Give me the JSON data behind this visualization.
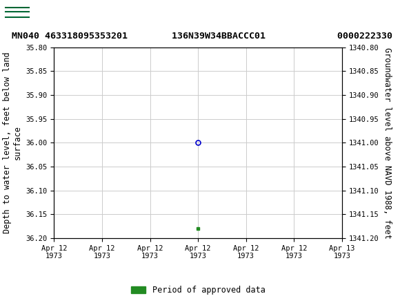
{
  "title_line": "MN040 463318095353201        136N39W34BBACCC01             0000222330",
  "header_bg_color": "#006633",
  "ylabel_left": "Depth to water level, feet below land\nsurface",
  "ylabel_right": "Groundwater level above NAVD 1988, feet",
  "ylim_left": [
    35.8,
    36.2
  ],
  "ylim_right": [
    1340.8,
    1341.2
  ],
  "yticks_left": [
    35.8,
    35.85,
    35.9,
    35.95,
    36.0,
    36.05,
    36.1,
    36.15,
    36.2
  ],
  "yticks_right": [
    1340.8,
    1340.85,
    1340.9,
    1340.95,
    1341.0,
    1341.05,
    1341.1,
    1341.15,
    1341.2
  ],
  "data_point_xh": 12,
  "data_point_y": 36.0,
  "data_point_color": "#0000cc",
  "data_point_marker_size": 5,
  "green_square_xh": 12,
  "green_square_y": 36.18,
  "green_square_color": "#228B22",
  "legend_label": "Period of approved data",
  "grid_color": "#cccccc",
  "background_color": "#ffffff",
  "font_family": "monospace",
  "title_fontsize": 9.5,
  "axis_fontsize": 8.5,
  "tick_fontsize": 7.5,
  "total_hours": 24,
  "xtick_positions_hours": [
    0,
    4,
    8,
    12,
    16,
    20,
    24
  ],
  "xtick_labels": [
    "Apr 12\n1973",
    "Apr 12\n1973",
    "Apr 12\n1973",
    "Apr 12\n1973",
    "Apr 12\n1973",
    "Apr 12\n1973",
    "Apr 13\n1973"
  ]
}
